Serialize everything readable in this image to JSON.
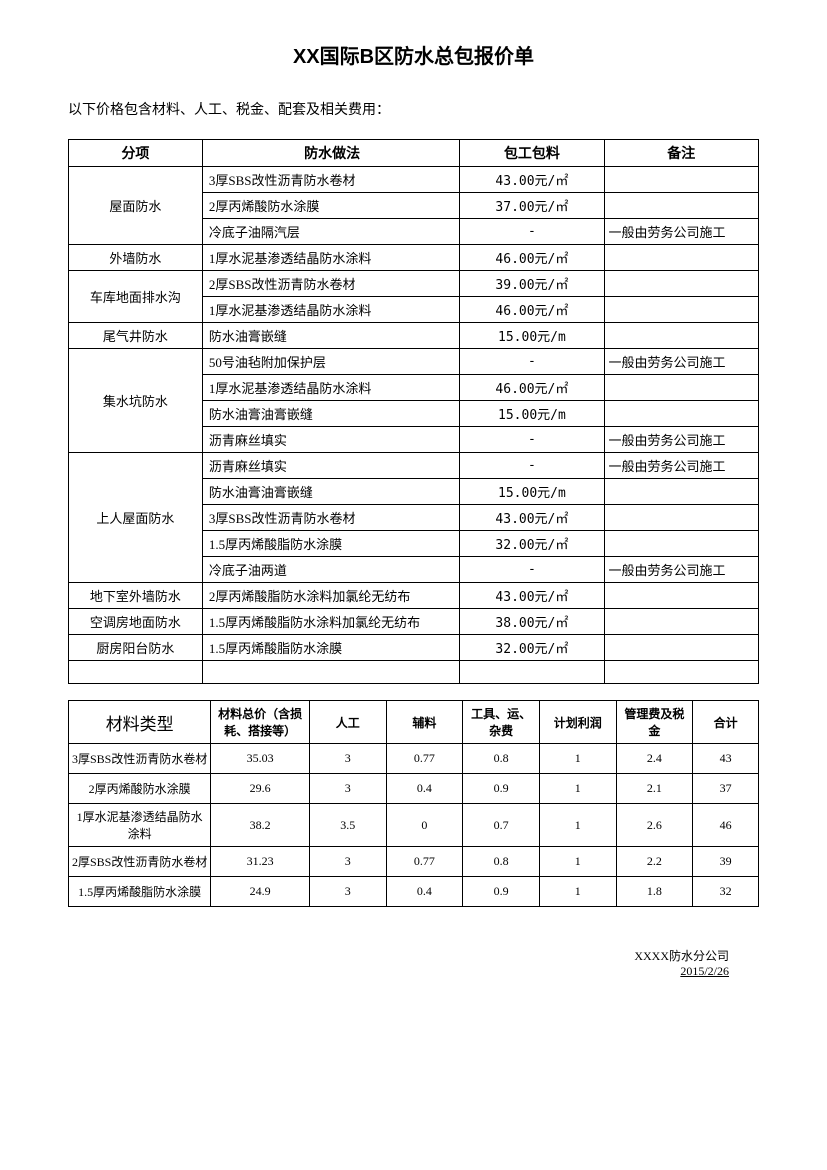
{
  "title": "XX国际B区防水总包报价单",
  "intro": "以下价格包含材料、人工、税金、配套及相关费用：",
  "table1": {
    "headers": [
      "分项",
      "防水做法",
      "包工包料",
      "备注"
    ],
    "groups": [
      {
        "category": "屋面防水",
        "rows": [
          {
            "method": "3厚SBS改性沥青防水卷材",
            "price": "43.00元/㎡",
            "note": ""
          },
          {
            "method": "2厚丙烯酸防水涂膜",
            "price": "37.00元/㎡",
            "note": ""
          },
          {
            "method": "冷底子油隔汽层",
            "price": "-",
            "note": "一般由劳务公司施工"
          }
        ]
      },
      {
        "category": "外墙防水",
        "rows": [
          {
            "method": "1厚水泥基渗透结晶防水涂料",
            "price": "46.00元/㎡",
            "note": ""
          }
        ]
      },
      {
        "category": "车库地面排水沟",
        "rows": [
          {
            "method": "2厚SBS改性沥青防水卷材",
            "price": "39.00元/㎡",
            "note": ""
          },
          {
            "method": "1厚水泥基渗透结晶防水涂料",
            "price": "46.00元/㎡",
            "note": ""
          }
        ]
      },
      {
        "category": "尾气井防水",
        "rows": [
          {
            "method": "防水油膏嵌缝",
            "price": "15.00元/m",
            "note": ""
          }
        ]
      },
      {
        "category": "集水坑防水",
        "rows": [
          {
            "method": "50号油毡附加保护层",
            "price": "-",
            "note": "一般由劳务公司施工"
          },
          {
            "method": "1厚水泥基渗透结晶防水涂料",
            "price": "46.00元/㎡",
            "note": ""
          },
          {
            "method": "防水油膏油膏嵌缝",
            "price": "15.00元/m",
            "note": ""
          },
          {
            "method": "沥青麻丝填实",
            "price": "-",
            "note": "一般由劳务公司施工"
          }
        ]
      },
      {
        "category": "上人屋面防水",
        "rows": [
          {
            "method": "沥青麻丝填实",
            "price": "-",
            "note": "一般由劳务公司施工"
          },
          {
            "method": "防水油膏油膏嵌缝",
            "price": "15.00元/m",
            "note": ""
          },
          {
            "method": "3厚SBS改性沥青防水卷材",
            "price": "43.00元/㎡",
            "note": ""
          },
          {
            "method": "1.5厚丙烯酸脂防水涂膜",
            "price": "32.00元/㎡",
            "note": ""
          },
          {
            "method": "冷底子油两道",
            "price": "-",
            "note": "一般由劳务公司施工"
          }
        ]
      },
      {
        "category": "地下室外墙防水",
        "rows": [
          {
            "method": "2厚丙烯酸脂防水涂料加氯纶无纺布",
            "price": "43.00元/㎡",
            "note": ""
          }
        ]
      },
      {
        "category": "空调房地面防水",
        "rows": [
          {
            "method": "1.5厚丙烯酸脂防水涂料加氯纶无纺布",
            "price": "38.00元/㎡",
            "note": ""
          }
        ]
      },
      {
        "category": "厨房阳台防水",
        "rows": [
          {
            "method": "1.5厚丙烯酸脂防水涂膜",
            "price": "32.00元/㎡",
            "note": ""
          }
        ]
      }
    ]
  },
  "table2": {
    "headers": [
      "材料类型",
      "材料总价（含损耗、搭接等）",
      "人工",
      "辅料",
      "工具、运、杂费",
      "计划利润",
      "管理费及税金",
      "合计"
    ],
    "rows": [
      [
        "3厚SBS改性沥青防水卷材",
        "35.03",
        "3",
        "0.77",
        "0.8",
        "1",
        "2.4",
        "43"
      ],
      [
        "2厚丙烯酸防水涂膜",
        "29.6",
        "3",
        "0.4",
        "0.9",
        "1",
        "2.1",
        "37"
      ],
      [
        "1厚水泥基渗透结晶防水涂料",
        "38.2",
        "3.5",
        "0",
        "0.7",
        "1",
        "2.6",
        "46"
      ],
      [
        "2厚SBS改性沥青防水卷材",
        "31.23",
        "3",
        "0.77",
        "0.8",
        "1",
        "2.2",
        "39"
      ],
      [
        "1.5厚丙烯酸脂防水涂膜",
        "24.9",
        "3",
        "0.4",
        "0.9",
        "1",
        "1.8",
        "32"
      ]
    ]
  },
  "footer": {
    "company": "XXXX防水分公司",
    "date": "2015/2/26"
  }
}
